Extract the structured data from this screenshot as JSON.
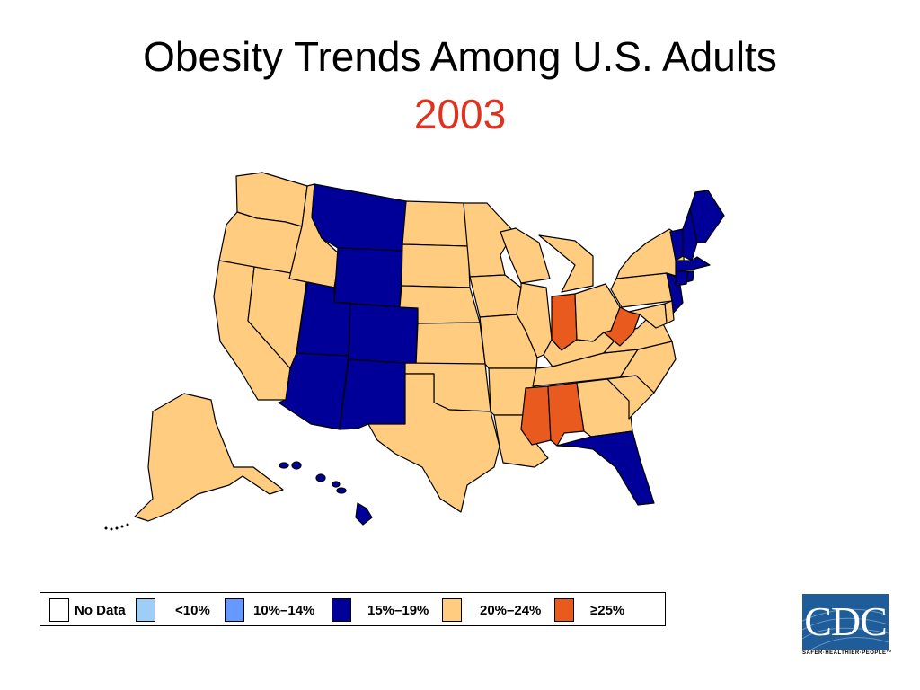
{
  "title": "Obesity Trends Among U.S. Adults",
  "subtitle": "2003",
  "colors": {
    "no_data": "#ffffff",
    "lt10": "#9ecdf5",
    "10_14": "#6699ff",
    "15_19": "#000099",
    "20_24": "#ffcc80",
    "ge25": "#e85a1e",
    "subtitle": "#e0321e",
    "logo_bg": "#1e5c9a"
  },
  "legend": [
    {
      "label": "No Data",
      "color_key": "no_data"
    },
    {
      "label": "<10%",
      "color_key": "lt10"
    },
    {
      "label": "10%–14%",
      "color_key": "10_14"
    },
    {
      "label": "15%–19%",
      "color_key": "15_19"
    },
    {
      "label": "20%–24%",
      "color_key": "20_24"
    },
    {
      "label": "≥25%",
      "color_key": "ge25"
    }
  ],
  "map_data": {
    "category_by_state": {
      "WA": "20_24",
      "OR": "20_24",
      "CA": "20_24",
      "NV": "20_24",
      "ID": "20_24",
      "MT": "15_19",
      "WY": "15_19",
      "UT": "15_19",
      "CO": "15_19",
      "AZ": "15_19",
      "NM": "15_19",
      "ND": "20_24",
      "SD": "20_24",
      "NE": "20_24",
      "KS": "20_24",
      "OK": "20_24",
      "TX": "20_24",
      "MN": "20_24",
      "IA": "20_24",
      "MO": "20_24",
      "AR": "20_24",
      "LA": "20_24",
      "WI": "20_24",
      "IL": "20_24",
      "MI": "20_24",
      "IN": "ge25",
      "OH": "20_24",
      "KY": "20_24",
      "TN": "20_24",
      "MS": "ge25",
      "AL": "ge25",
      "GA": "20_24",
      "FL": "15_19",
      "SC": "20_24",
      "NC": "20_24",
      "VA": "20_24",
      "WV": "ge25",
      "PA": "20_24",
      "NY": "20_24",
      "NJ": "15_19",
      "DE": "20_24",
      "MD": "20_24",
      "VT": "15_19",
      "NH": "15_19",
      "ME": "15_19",
      "MA": "15_19",
      "CT": "15_19",
      "RI": "15_19",
      "AK": "20_24",
      "HI": "15_19"
    }
  },
  "logo": {
    "text": "CDC",
    "tagline": "SAFER·HEALTHIER·PEOPLE™"
  }
}
